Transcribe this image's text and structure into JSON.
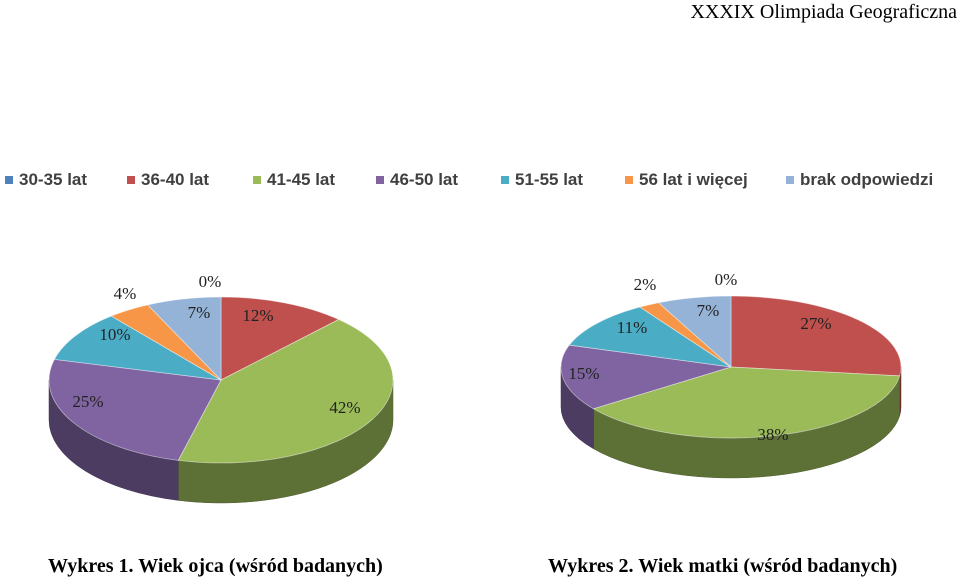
{
  "header": {
    "title": "XXXIX Olimpiada Geograficzna"
  },
  "legend": {
    "items": [
      {
        "label": "30-35 lat",
        "color": "#4F81BD"
      },
      {
        "label": "36-40 lat",
        "color": "#C0504D"
      },
      {
        "label": "41-45 lat",
        "color": "#9BBB59"
      },
      {
        "label": "46-50 lat",
        "color": "#8064A2"
      },
      {
        "label": "51-55 lat",
        "color": "#4BACC6"
      },
      {
        "label": "56 lat i więcej",
        "color": "#F79646"
      },
      {
        "label": "brak odpowiedzi",
        "color": "#95B3D7"
      }
    ]
  },
  "chart_data": [
    {
      "type": "pie",
      "title": "Wykres 1. Wiek ojca (wśród badanych)",
      "categories": [
        "30-35 lat",
        "36-40 lat",
        "41-45 lat",
        "46-50 lat",
        "51-55 lat",
        "56 lat i więcej",
        "brak odpowiedzi"
      ],
      "values": [
        0,
        12,
        42,
        25,
        10,
        4,
        7
      ],
      "labels": [
        "0%",
        "12%",
        "42%",
        "25%",
        "10%",
        "4%",
        "7%"
      ]
    },
    {
      "type": "pie",
      "title": "Wykres 2. Wiek matki (wśród badanych)",
      "categories": [
        "30-35 lat",
        "36-40 lat",
        "41-45 lat",
        "46-50 lat",
        "51-55 lat",
        "56 lat i więcej",
        "brak odpowiedzi"
      ],
      "values": [
        0,
        27,
        38,
        15,
        11,
        2,
        7
      ],
      "labels": [
        "0%",
        "27%",
        "38%",
        "15%",
        "11%",
        "2%",
        "7%"
      ]
    }
  ]
}
